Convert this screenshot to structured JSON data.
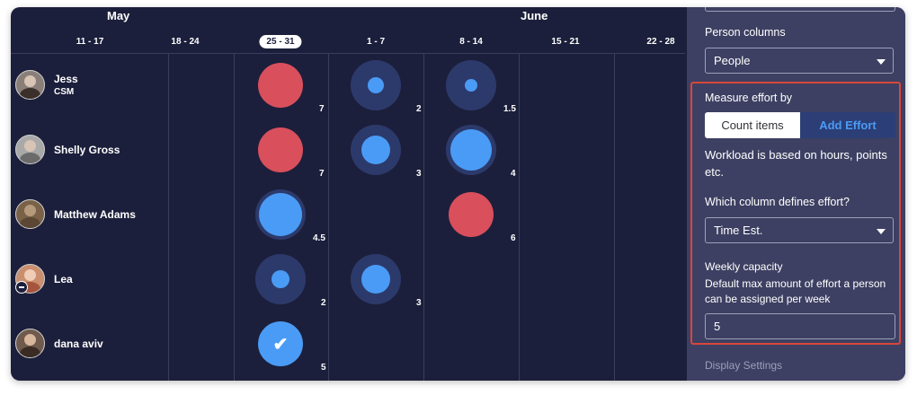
{
  "timeline": {
    "months": [
      "May",
      "June"
    ],
    "weeks": [
      "11 - 17",
      "18 - 24",
      "25 - 31",
      "1 - 7",
      "8 - 14",
      "15 - 21",
      "22 - 28"
    ],
    "selected_week": "25 - 31"
  },
  "people": [
    {
      "name": "Jess",
      "role": "CSM"
    },
    {
      "name": "Shelly Gross",
      "role": ""
    },
    {
      "name": "Matthew Adams",
      "role": ""
    },
    {
      "name": "Lea",
      "role": ""
    },
    {
      "name": "dana aviv",
      "role": ""
    }
  ],
  "workload": {
    "capacity": 5,
    "cells": [
      {
        "person": 0,
        "week": "25 - 31",
        "value": "7",
        "status": "over"
      },
      {
        "person": 0,
        "week": "1 - 7",
        "value": "2",
        "status": "under"
      },
      {
        "person": 0,
        "week": "8 - 14",
        "value": "1.5",
        "status": "under"
      },
      {
        "person": 1,
        "week": "25 - 31",
        "value": "7",
        "status": "over"
      },
      {
        "person": 1,
        "week": "1 - 7",
        "value": "3",
        "status": "under"
      },
      {
        "person": 1,
        "week": "8 - 14",
        "value": "4",
        "status": "under"
      },
      {
        "person": 2,
        "week": "25 - 31",
        "value": "4.5",
        "status": "under"
      },
      {
        "person": 2,
        "week": "8 - 14",
        "value": "6",
        "status": "over"
      },
      {
        "person": 3,
        "week": "25 - 31",
        "value": "2",
        "status": "under"
      },
      {
        "person": 3,
        "week": "1 - 7",
        "value": "3",
        "status": "under"
      },
      {
        "person": 4,
        "week": "25 - 31",
        "value": "5",
        "status": "full"
      }
    ]
  },
  "panel": {
    "person_columns_label": "Person columns",
    "person_columns_value": "People",
    "measure_label": "Measure effort by",
    "toggle_count": "Count items",
    "toggle_effort": "Add Effort",
    "workload_desc": "Workload is based on hours, points etc.",
    "effort_column_label": "Which column defines effort?",
    "effort_column_value": "Time Est.",
    "capacity_label": "Weekly capacity",
    "capacity_desc": "Default max amount of effort a person can be assigned per week",
    "capacity_value": "5",
    "display_settings": "Display Settings"
  },
  "colors": {
    "background": "#1c1f3b",
    "over": "#d94f5c",
    "under": "#4a9bf5",
    "panel": "#3d4062",
    "highlight_border": "#d9463b"
  }
}
